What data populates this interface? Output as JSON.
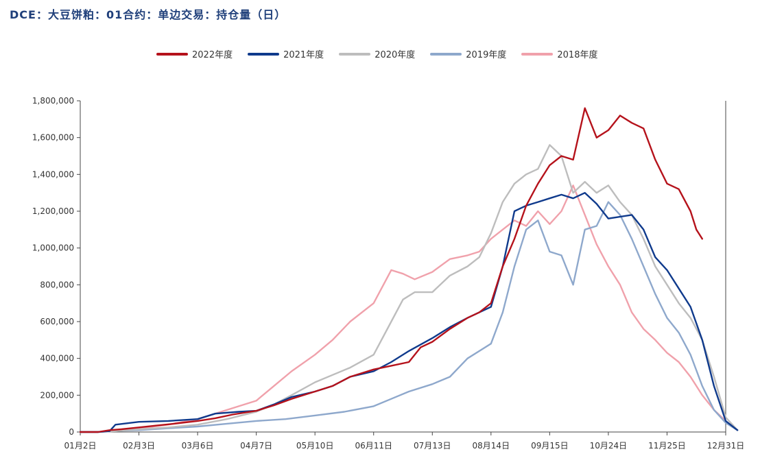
{
  "title": "DCE：大豆饼粕：01合约：单边交易：持仓量（日）",
  "chart_data": {
    "type": "line",
    "title": "DCE：大豆饼粕：01合约：单边交易：持仓量（日）",
    "xlabel": "",
    "ylabel": "",
    "x_ticks": [
      "01月2日",
      "02月3日",
      "03月6日",
      "04月7日",
      "05月10日",
      "06月11日",
      "07月13日",
      "08月14日",
      "09月15日",
      "10月24日",
      "11月25日",
      "12月31日"
    ],
    "y_ticks": [
      "0",
      "200,000",
      "400,000",
      "600,000",
      "800,000",
      "1,000,000",
      "1,200,000",
      "1,400,000",
      "1,600,000",
      "1,800,000"
    ],
    "ylim": [
      0,
      1800000
    ],
    "grid": false,
    "legend_position": "top",
    "series": [
      {
        "name": "2022年度",
        "color": "#b5121b",
        "x": [
          0,
          0.3,
          0.5,
          0.7,
          1,
          1.3,
          1.6,
          2,
          2.3,
          2.6,
          3,
          3.3,
          3.6,
          4,
          4.3,
          4.6,
          5,
          5.3,
          5.6,
          5.8,
          6,
          6.3,
          6.6,
          6.8,
          7,
          7.2,
          7.4,
          7.6,
          7.8,
          8,
          8.2,
          8.4,
          8.6,
          8.8,
          9,
          9.2,
          9.4,
          9.6,
          9.8,
          10,
          10.2,
          10.4,
          10.5,
          10.6
        ],
        "values": [
          0,
          0,
          10000,
          15000,
          25000,
          35000,
          45000,
          60000,
          75000,
          95000,
          115000,
          145000,
          180000,
          220000,
          250000,
          300000,
          340000,
          360000,
          380000,
          460000,
          490000,
          560000,
          620000,
          650000,
          700000,
          900000,
          1050000,
          1230000,
          1350000,
          1450000,
          1500000,
          1480000,
          1760000,
          1600000,
          1640000,
          1720000,
          1680000,
          1650000,
          1480000,
          1350000,
          1320000,
          1200000,
          1100000,
          1050000
        ]
      },
      {
        "name": "2021年度",
        "color": "#0f3a8c",
        "x": [
          0,
          0.3,
          0.5,
          0.6,
          1,
          1.5,
          2,
          2.3,
          2.7,
          3,
          3.3,
          3.6,
          4,
          4.3,
          4.6,
          5,
          5.3,
          5.6,
          6,
          6.3,
          6.6,
          7,
          7.2,
          7.4,
          7.6,
          7.8,
          8,
          8.2,
          8.4,
          8.6,
          8.8,
          9,
          9.2,
          9.4,
          9.6,
          9.8,
          10,
          10.2,
          10.4,
          10.6,
          10.8,
          11,
          11.2
        ],
        "values": [
          0,
          0,
          5000,
          40000,
          55000,
          60000,
          70000,
          100000,
          110000,
          115000,
          150000,
          190000,
          220000,
          250000,
          300000,
          330000,
          380000,
          440000,
          510000,
          570000,
          620000,
          680000,
          900000,
          1200000,
          1230000,
          1250000,
          1270000,
          1290000,
          1270000,
          1300000,
          1240000,
          1160000,
          1170000,
          1180000,
          1100000,
          950000,
          880000,
          780000,
          680000,
          500000,
          250000,
          60000,
          10000
        ]
      },
      {
        "name": "2020年度",
        "color": "#bdbdbd",
        "x": [
          0,
          0.3,
          0.6,
          1,
          1.5,
          2,
          2.5,
          3,
          3.3,
          3.6,
          4,
          4.3,
          4.6,
          5,
          5.3,
          5.5,
          5.7,
          6,
          6.3,
          6.6,
          6.8,
          7,
          7.2,
          7.4,
          7.6,
          7.8,
          8,
          8.2,
          8.4,
          8.6,
          8.8,
          9,
          9.2,
          9.4,
          9.6,
          9.8,
          10,
          10.2,
          10.4,
          10.6,
          10.8,
          11,
          11.2
        ],
        "values": [
          0,
          0,
          5000,
          15000,
          25000,
          40000,
          70000,
          110000,
          150000,
          200000,
          270000,
          310000,
          350000,
          420000,
          600000,
          720000,
          760000,
          760000,
          850000,
          900000,
          950000,
          1080000,
          1250000,
          1350000,
          1400000,
          1430000,
          1560000,
          1500000,
          1300000,
          1360000,
          1300000,
          1340000,
          1250000,
          1180000,
          1050000,
          900000,
          800000,
          700000,
          620000,
          500000,
          300000,
          80000,
          10000
        ]
      },
      {
        "name": "2019年度",
        "color": "#8ea8cc",
        "x": [
          0,
          0.3,
          0.5,
          1,
          1.5,
          2,
          2.5,
          3,
          3.5,
          4,
          4.5,
          5,
          5.3,
          5.6,
          6,
          6.3,
          6.6,
          7,
          7.2,
          7.4,
          7.6,
          7.8,
          8,
          8.2,
          8.4,
          8.6,
          8.8,
          9,
          9.2,
          9.4,
          9.6,
          9.8,
          10,
          10.2,
          10.4,
          10.6,
          10.8,
          11,
          11.2
        ],
        "values": [
          0,
          0,
          5000,
          10000,
          20000,
          30000,
          45000,
          60000,
          70000,
          90000,
          110000,
          140000,
          180000,
          220000,
          260000,
          300000,
          400000,
          480000,
          650000,
          900000,
          1100000,
          1150000,
          980000,
          960000,
          800000,
          1100000,
          1120000,
          1250000,
          1180000,
          1050000,
          900000,
          750000,
          620000,
          540000,
          420000,
          250000,
          120000,
          50000,
          10000
        ]
      },
      {
        "name": "2018年度",
        "color": "#f0a1ab",
        "x": [
          0,
          0.3,
          0.5,
          1,
          1.5,
          2,
          2.3,
          2.6,
          3,
          3.3,
          3.6,
          4,
          4.3,
          4.6,
          5,
          5.3,
          5.5,
          5.7,
          6,
          6.3,
          6.6,
          6.8,
          7,
          7.2,
          7.4,
          7.6,
          7.8,
          8,
          8.2,
          8.4,
          8.6,
          8.8,
          9,
          9.2,
          9.4,
          9.6,
          9.8,
          10,
          10.2,
          10.4,
          10.6,
          10.8,
          11,
          11.2
        ],
        "values": [
          0,
          0,
          5000,
          20000,
          40000,
          70000,
          100000,
          130000,
          170000,
          250000,
          330000,
          420000,
          500000,
          600000,
          700000,
          880000,
          860000,
          830000,
          870000,
          940000,
          960000,
          980000,
          1050000,
          1100000,
          1150000,
          1120000,
          1200000,
          1130000,
          1200000,
          1340000,
          1180000,
          1020000,
          900000,
          800000,
          650000,
          560000,
          500000,
          430000,
          380000,
          300000,
          200000,
          120000,
          60000,
          10000
        ]
      }
    ]
  }
}
